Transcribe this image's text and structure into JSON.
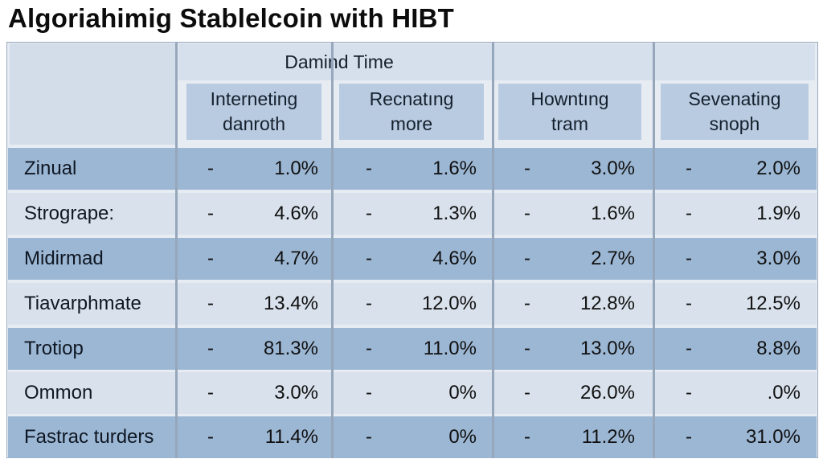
{
  "title": "Algoriahimig Stablelcoin with HIBT",
  "group_header": "Damind Time",
  "columns": [
    "Interneting\ndanroth",
    "Recnatıng\nmore",
    "Howntıng\ntram",
    "Sevenating\nsnoph"
  ],
  "rows": [
    {
      "label": "Zinual",
      "values": [
        "1.0%",
        "1.6%",
        "3.0%",
        "2.0%"
      ]
    },
    {
      "label": "Strogrape:",
      "values": [
        "4.6%",
        "1.3%",
        "1.6%",
        "1.9%"
      ]
    },
    {
      "label": "Midirmad",
      "values": [
        "4.7%",
        "4.6%",
        "2.7%",
        "3.0%"
      ]
    },
    {
      "label": "Tiavarphmate",
      "values": [
        "13.4%",
        "12.0%",
        "12.8%",
        "12.5%"
      ]
    },
    {
      "label": "Trotiop",
      "values": [
        "81.3%",
        "11.0%",
        "13.0%",
        "8.8%"
      ]
    },
    {
      "label": "Ommon",
      "values": [
        "3.0%",
        "0%",
        "26.0%",
        ".0%"
      ]
    },
    {
      "label": "Fastrac turders",
      "values": [
        "11.4%",
        "0%",
        "11.2%",
        "31.0%"
      ]
    }
  ],
  "dash_symbol": "-"
}
